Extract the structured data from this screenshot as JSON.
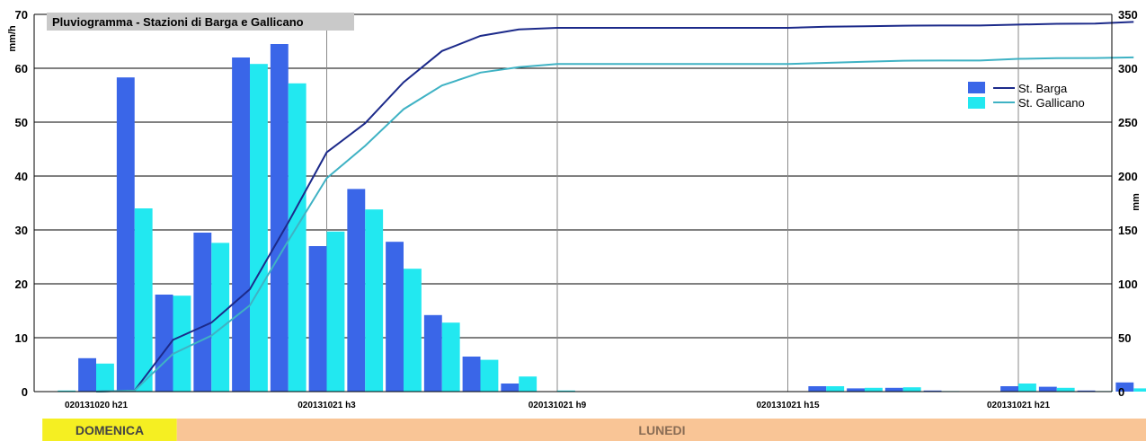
{
  "chart_data": {
    "type": "bar",
    "title": "Pluviogramma - Stazioni di Barga e Gallicano",
    "ylabel": "mm/h",
    "y2label": "mm",
    "ylim": [
      0,
      70
    ],
    "y2lim": [
      0,
      350
    ],
    "yticks": [
      "0",
      "10",
      "20",
      "30",
      "40",
      "50",
      "60",
      "70"
    ],
    "y2ticks": [
      "0",
      "50",
      "100",
      "150",
      "200",
      "250",
      "300",
      "350"
    ],
    "x_tick_labels": [
      "020131020 h21",
      "020131021 h3",
      "020131021 h9",
      "020131021 h15",
      "020131021 h21"
    ],
    "x_tick_hours": [
      0,
      6,
      12,
      18,
      24
    ],
    "hours": [
      -1,
      0,
      1,
      2,
      3,
      4,
      5,
      6,
      7,
      8,
      9,
      10,
      11,
      12,
      13,
      14,
      15,
      16,
      17,
      18,
      19,
      20,
      21,
      22,
      23,
      24,
      25,
      26,
      27
    ],
    "grid": true,
    "legend_position": "top-right",
    "series": [
      {
        "name": "St. Barga",
        "color": "#3a66e8",
        "values": [
          0,
          6.2,
          58.3,
          18,
          29.5,
          62,
          64.5,
          27,
          37.6,
          27.8,
          14.2,
          6.5,
          1.5,
          0,
          0,
          0,
          0,
          0,
          0,
          0,
          1,
          0.6,
          0.7,
          0.2,
          0,
          1,
          0.9,
          0.2,
          1.7
        ],
        "cumulative": [
          0,
          0,
          1,
          48,
          64,
          95,
          157,
          222,
          249,
          287,
          316,
          330,
          336,
          337.5,
          337.5,
          337.5,
          337.5,
          337.5,
          337.5,
          337.5,
          338.5,
          339,
          339.5,
          339.7,
          339.7,
          340.5,
          341.2,
          341.5,
          343
        ]
      },
      {
        "name": "St. Gallicano",
        "color": "#22e8f0",
        "values": [
          0.2,
          5.2,
          34,
          17.8,
          27.6,
          60.8,
          57.2,
          29.7,
          33.8,
          22.8,
          12.8,
          5.9,
          2.8,
          0.2,
          0,
          0,
          0,
          0,
          0,
          0,
          1,
          0.7,
          0.8,
          0.1,
          0,
          1.5,
          0.7,
          0.1,
          0.6
        ],
        "cumulative": [
          0,
          0,
          1,
          35,
          52,
          80,
          140,
          198,
          228,
          262,
          284,
          296,
          301,
          304,
          304,
          304,
          304,
          304,
          304,
          304,
          305,
          306,
          307,
          307.2,
          307.2,
          308.7,
          309.4,
          309.5,
          310.1
        ]
      }
    ],
    "day_bands": [
      {
        "label": "DOMENICA",
        "color": "#f5ef22",
        "text_color": "#444444",
        "start_hour": -1.4,
        "end_hour": 2.1
      },
      {
        "label": "LUNEDI",
        "color": "#f9c596",
        "text_color": "#8a6d55",
        "start_hour": 2.1,
        "end_hour": 27.35
      }
    ]
  }
}
